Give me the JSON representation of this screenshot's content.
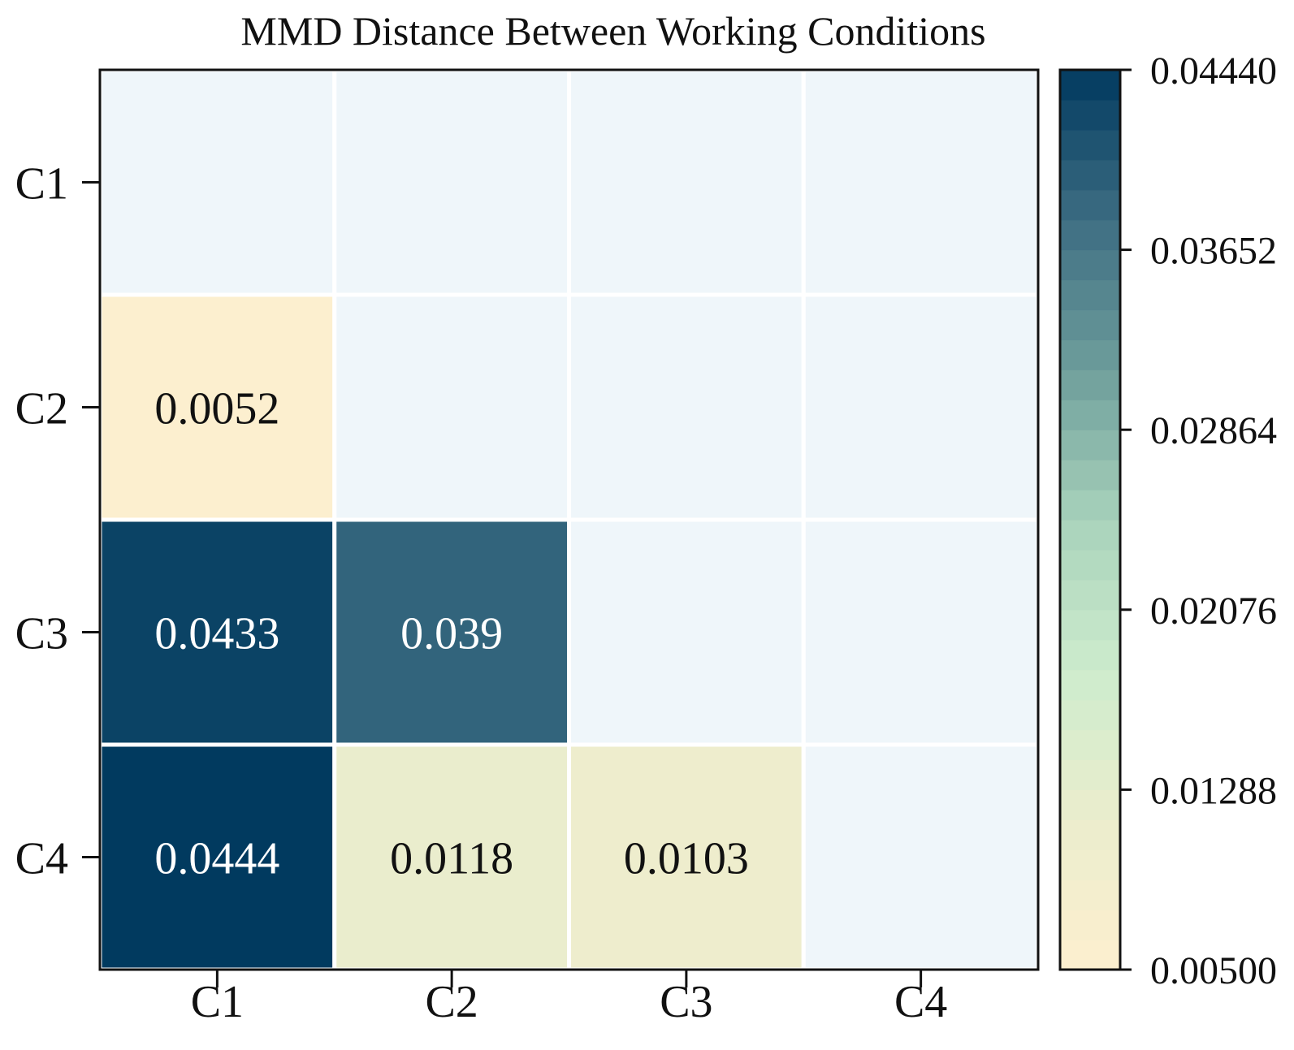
{
  "chart_data": {
    "type": "heatmap",
    "title": "MMD Distance Between Working Conditions",
    "x_labels": [
      "C1",
      "C2",
      "C3",
      "C4"
    ],
    "y_labels": [
      "C1",
      "C2",
      "C3",
      "C4"
    ],
    "cells": [
      {
        "row": 1,
        "col": 0,
        "value": 0.0052,
        "label": "0.0052"
      },
      {
        "row": 2,
        "col": 0,
        "value": 0.0433,
        "label": "0.0433"
      },
      {
        "row": 2,
        "col": 1,
        "value": 0.039,
        "label": "0.039"
      },
      {
        "row": 3,
        "col": 0,
        "value": 0.0444,
        "label": "0.0444"
      },
      {
        "row": 3,
        "col": 1,
        "value": 0.0118,
        "label": "0.0118"
      },
      {
        "row": 3,
        "col": 2,
        "value": 0.0103,
        "label": "0.0103"
      }
    ],
    "masked_cell_color": "#eff6fa",
    "colorbar": {
      "min": 0.005,
      "max": 0.0444,
      "ticks": [
        {
          "value": 0.005,
          "label": "0.00500"
        },
        {
          "value": 0.01288,
          "label": "0.01288"
        },
        {
          "value": 0.02076,
          "label": "0.02076"
        },
        {
          "value": 0.02864,
          "label": "0.02864"
        },
        {
          "value": 0.03652,
          "label": "0.03652"
        },
        {
          "value": 0.0444,
          "label": "0.04440"
        }
      ],
      "levels": 30,
      "colors": [
        "#fdefcf",
        "#ebedcd",
        "#cdeccd",
        "#a8d2bb",
        "#6e9e9b",
        "#3d6d82",
        "#013a5f"
      ]
    }
  }
}
